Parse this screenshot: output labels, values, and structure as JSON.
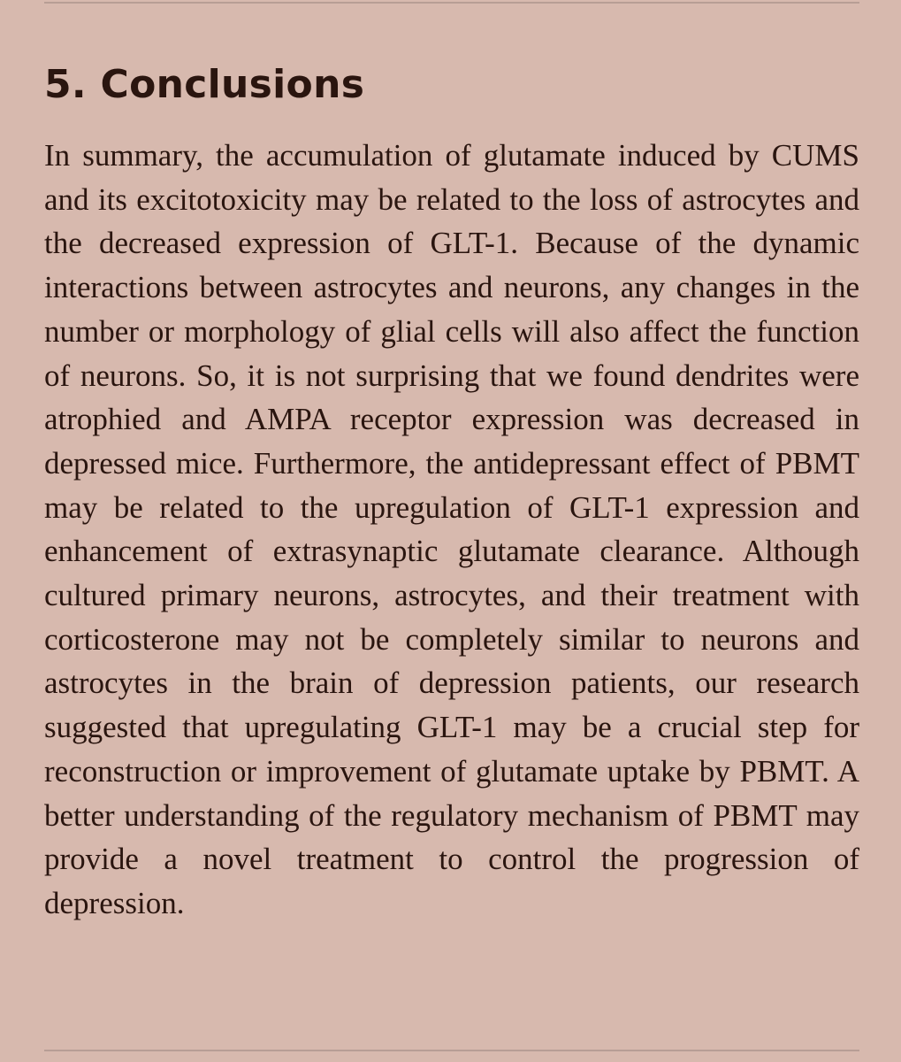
{
  "section": {
    "heading": "5. Conclusions",
    "paragraph": "In summary, the accumulation of glutamate induced by CUMS and its excitotoxicity may be related to the loss of astrocytes and the decreased expression of GLT-1. Because of the dynamic interactions between astrocytes and neurons, any changes in the number or morphology of glial cells will also affect the function of neurons. So, it is not surprising that we found dendrites were atrophied and AMPA receptor expression was decreased in depressed mice. Furthermore, the antidepressant effect of PBMT may be related to the upregulation of GLT-1 expression and enhancement of extrasynaptic glutamate clearance. Although cultured primary neurons, astrocytes, and their treatment with corticosterone may not be completely similar to neurons and astrocytes in the brain of depression patients, our research suggested that upregulating GLT-1 may be a crucial step for reconstruction or improvement of glutamate uptake by PBMT. A better understanding of the regulatory mechanism of PBMT may provide a novel treatment to control the progression of depression."
  },
  "colors": {
    "background": "#d7b9ae",
    "text": "#2a150f",
    "rule": "#b79e95"
  }
}
